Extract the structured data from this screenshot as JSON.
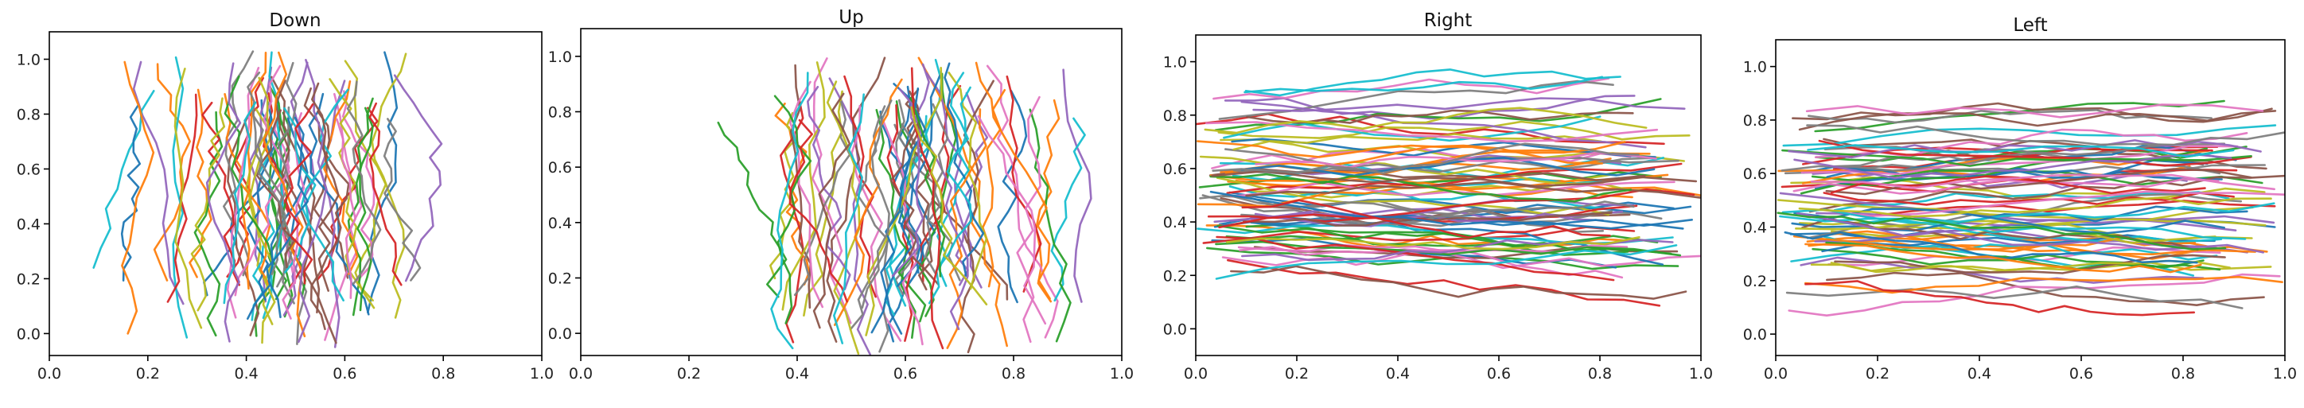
{
  "chart_data": [
    {
      "type": "line",
      "title": "Down",
      "xlim": [
        0.0,
        1.0
      ],
      "ylim": [
        -0.08,
        1.1
      ],
      "xticks": [
        "0.0",
        "0.2",
        "0.4",
        "0.6",
        "0.8",
        "1.0"
      ],
      "yticks": [
        "0.0",
        "0.2",
        "0.4",
        "0.6",
        "0.8",
        "1.0"
      ],
      "grid": false,
      "trajectory_direction": "vertical",
      "trajectory_count": 70,
      "x_range_of_trajectories": [
        0.09,
        0.93
      ],
      "y_range_of_trajectories": [
        -0.05,
        1.03
      ],
      "x_center": 0.45
    },
    {
      "type": "line",
      "title": "Up",
      "xlim": [
        0.0,
        1.0
      ],
      "ylim": [
        -0.08,
        1.1
      ],
      "xticks": [
        "0.0",
        "0.2",
        "0.4",
        "0.6",
        "0.8",
        "1.0"
      ],
      "yticks": [
        "0.0",
        "0.2",
        "0.4",
        "0.6",
        "0.8",
        "1.0"
      ],
      "grid": false,
      "trajectory_direction": "vertical",
      "trajectory_count": 70,
      "x_range_of_trajectories": [
        0.13,
        0.95
      ],
      "y_range_of_trajectories": [
        -0.08,
        1.0
      ],
      "x_center": 0.55
    },
    {
      "type": "line",
      "title": "Right",
      "xlim": [
        0.0,
        1.0
      ],
      "ylim": [
        -0.1,
        1.1
      ],
      "xticks": [
        "0.0",
        "0.2",
        "0.4",
        "0.6",
        "0.8",
        "1.0"
      ],
      "yticks": [
        "0.0",
        "0.2",
        "0.4",
        "0.6",
        "0.8",
        "1.0"
      ],
      "grid": false,
      "trajectory_direction": "horizontal",
      "trajectory_count": 80,
      "x_range_of_trajectories": [
        0.0,
        1.0
      ],
      "y_range_of_trajectories": [
        0.0,
        1.0
      ],
      "y_center": 0.52
    },
    {
      "type": "line",
      "title": "Left",
      "xlim": [
        0.0,
        1.0
      ],
      "ylim": [
        -0.08,
        1.1
      ],
      "xticks": [
        "0.0",
        "0.2",
        "0.4",
        "0.6",
        "0.8",
        "1.0"
      ],
      "yticks": [
        "0.0",
        "0.2",
        "0.4",
        "0.6",
        "0.8",
        "1.0"
      ],
      "grid": false,
      "trajectory_direction": "horizontal",
      "trajectory_count": 80,
      "x_range_of_trajectories": [
        0.0,
        1.0
      ],
      "y_range_of_trajectories": [
        -0.05,
        1.0
      ],
      "y_center": 0.5
    }
  ],
  "palette": [
    "#1f77b4",
    "#ff7f0e",
    "#2ca02c",
    "#d62728",
    "#9467bd",
    "#8c564b",
    "#e377c2",
    "#7f7f7f",
    "#bcbd22",
    "#17becf"
  ]
}
